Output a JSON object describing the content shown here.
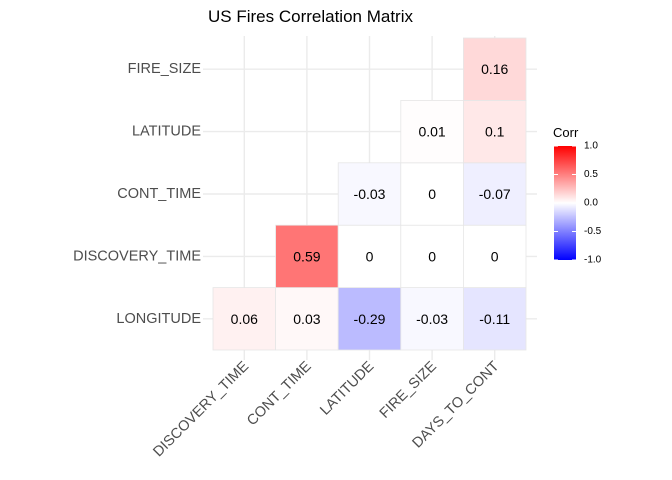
{
  "chart_data": {
    "type": "heatmap",
    "title": "US Fires Correlation Matrix",
    "x_categories": [
      "DISCOVERY_TIME",
      "CONT_TIME",
      "LATITUDE",
      "FIRE_SIZE",
      "DAYS_TO_CONT"
    ],
    "y_categories": [
      "LONGITUDE",
      "DISCOVERY_TIME",
      "CONT_TIME",
      "LATITUDE",
      "FIRE_SIZE"
    ],
    "cells": [
      {
        "x": "DISCOVERY_TIME",
        "y": "LONGITUDE",
        "value": 0.06,
        "label": "0.06"
      },
      {
        "x": "CONT_TIME",
        "y": "LONGITUDE",
        "value": 0.03,
        "label": "0.03"
      },
      {
        "x": "LATITUDE",
        "y": "LONGITUDE",
        "value": -0.29,
        "label": "-0.29"
      },
      {
        "x": "FIRE_SIZE",
        "y": "LONGITUDE",
        "value": -0.03,
        "label": "-0.03"
      },
      {
        "x": "DAYS_TO_CONT",
        "y": "LONGITUDE",
        "value": -0.11,
        "label": "-0.11"
      },
      {
        "x": "CONT_TIME",
        "y": "DISCOVERY_TIME",
        "value": 0.59,
        "label": "0.59"
      },
      {
        "x": "LATITUDE",
        "y": "DISCOVERY_TIME",
        "value": 0,
        "label": "0"
      },
      {
        "x": "FIRE_SIZE",
        "y": "DISCOVERY_TIME",
        "value": 0,
        "label": "0"
      },
      {
        "x": "DAYS_TO_CONT",
        "y": "DISCOVERY_TIME",
        "value": 0,
        "label": "0"
      },
      {
        "x": "LATITUDE",
        "y": "CONT_TIME",
        "value": -0.03,
        "label": "-0.03"
      },
      {
        "x": "FIRE_SIZE",
        "y": "CONT_TIME",
        "value": 0,
        "label": "0"
      },
      {
        "x": "DAYS_TO_CONT",
        "y": "CONT_TIME",
        "value": -0.07,
        "label": "-0.07"
      },
      {
        "x": "FIRE_SIZE",
        "y": "LATITUDE",
        "value": 0.01,
        "label": "0.01"
      },
      {
        "x": "DAYS_TO_CONT",
        "y": "LATITUDE",
        "value": 0.1,
        "label": "0.1"
      },
      {
        "x": "DAYS_TO_CONT",
        "y": "FIRE_SIZE",
        "value": 0.16,
        "label": "0.16"
      }
    ],
    "legend": {
      "title": "Corr",
      "position": "right",
      "range": [
        -1,
        1
      ],
      "ticks": [
        "1.0",
        "0.5",
        "0.0",
        "-0.5",
        "-1.0"
      ],
      "tick_values": [
        1,
        0.5,
        0,
        -0.5,
        -1
      ]
    },
    "colors": {
      "low": "#0000ff",
      "mid": "#ffffff",
      "high": "#ff0000"
    },
    "grid": true
  }
}
